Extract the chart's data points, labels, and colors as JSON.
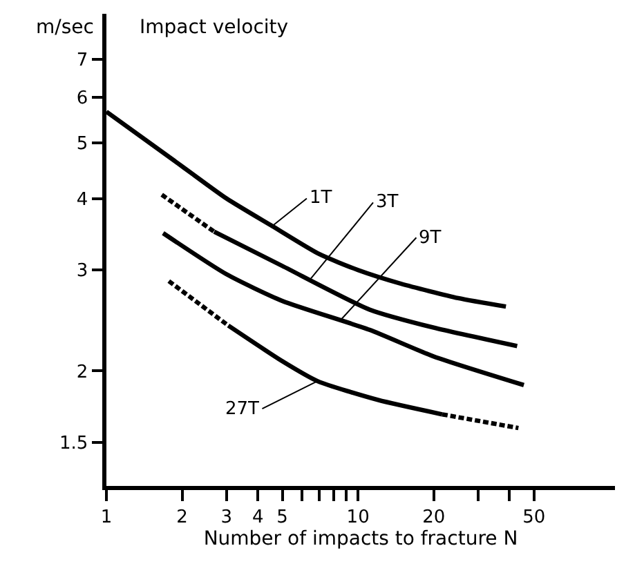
{
  "chart_data": {
    "type": "line",
    "title": "Impact velocity",
    "ylabel": "m/sec",
    "xlabel": "Number of impacts to fracture N",
    "log": "xy",
    "marker": "none",
    "xlim": [
      1,
      105
    ],
    "ylim": [
      1.26,
      8.4
    ],
    "xticks": [
      1,
      2,
      3,
      4,
      5,
      {
        "value": 6,
        "label": null
      },
      {
        "value": 7,
        "label": null
      },
      {
        "value": 8,
        "label": null
      },
      {
        "value": 9,
        "label": null
      },
      10,
      20,
      {
        "value": 30,
        "label": null
      },
      {
        "value": 40,
        "label": null
      },
      50
    ],
    "yticks": [
      1.5,
      2,
      3,
      4,
      5,
      6,
      7
    ],
    "series": [
      {
        "color": "#000000",
        "line_style": "solid",
        "x": [
          1,
          2,
          3,
          4.56,
          7,
          10,
          14.8,
          25,
          38.7
        ],
        "values": [
          5.67,
          4.55,
          4.0,
          3.58,
          3.2,
          3.0,
          2.84,
          2.68,
          2.59
        ]
      },
      {
        "color": "#000000",
        "line_style": "dashed",
        "x": [
          1.66,
          2.68
        ],
        "values": [
          4.06,
          3.5
        ]
      },
      {
        "color": "#000000",
        "line_style": "solid",
        "x": [
          2.68,
          5,
          11.1,
          20,
          42.9
        ],
        "values": [
          3.5,
          3.05,
          2.56,
          2.38,
          2.21
        ]
      },
      {
        "color": "#000000",
        "line_style": "solid",
        "x": [
          1.68,
          3,
          5,
          11.1,
          20,
          45.6
        ],
        "values": [
          3.48,
          2.95,
          2.65,
          2.36,
          2.12,
          1.89
        ]
      },
      {
        "color": "#000000",
        "line_style": "dashed",
        "x": [
          1.77,
          3.05
        ],
        "values": [
          2.87,
          2.4
        ]
      },
      {
        "color": "#000000",
        "line_style": "solid",
        "x": [
          3.05,
          5,
          6.9,
          12,
          21.6
        ],
        "values": [
          2.4,
          2.08,
          1.92,
          1.78,
          1.68
        ]
      },
      {
        "color": "#000000",
        "line_style": "dashed",
        "x": [
          21.6,
          43.4
        ],
        "values": [
          1.68,
          1.59
        ]
      }
    ],
    "annotations": [
      {
        "text": "1T",
        "x": 4.56,
        "y": 3.58
      },
      {
        "text": "3T",
        "x": 6.5,
        "y": 2.9
      },
      {
        "text": "9T",
        "x": 8.5,
        "y": 2.45
      },
      {
        "text": "27T",
        "x": 6.9,
        "y": 1.92
      }
    ]
  }
}
